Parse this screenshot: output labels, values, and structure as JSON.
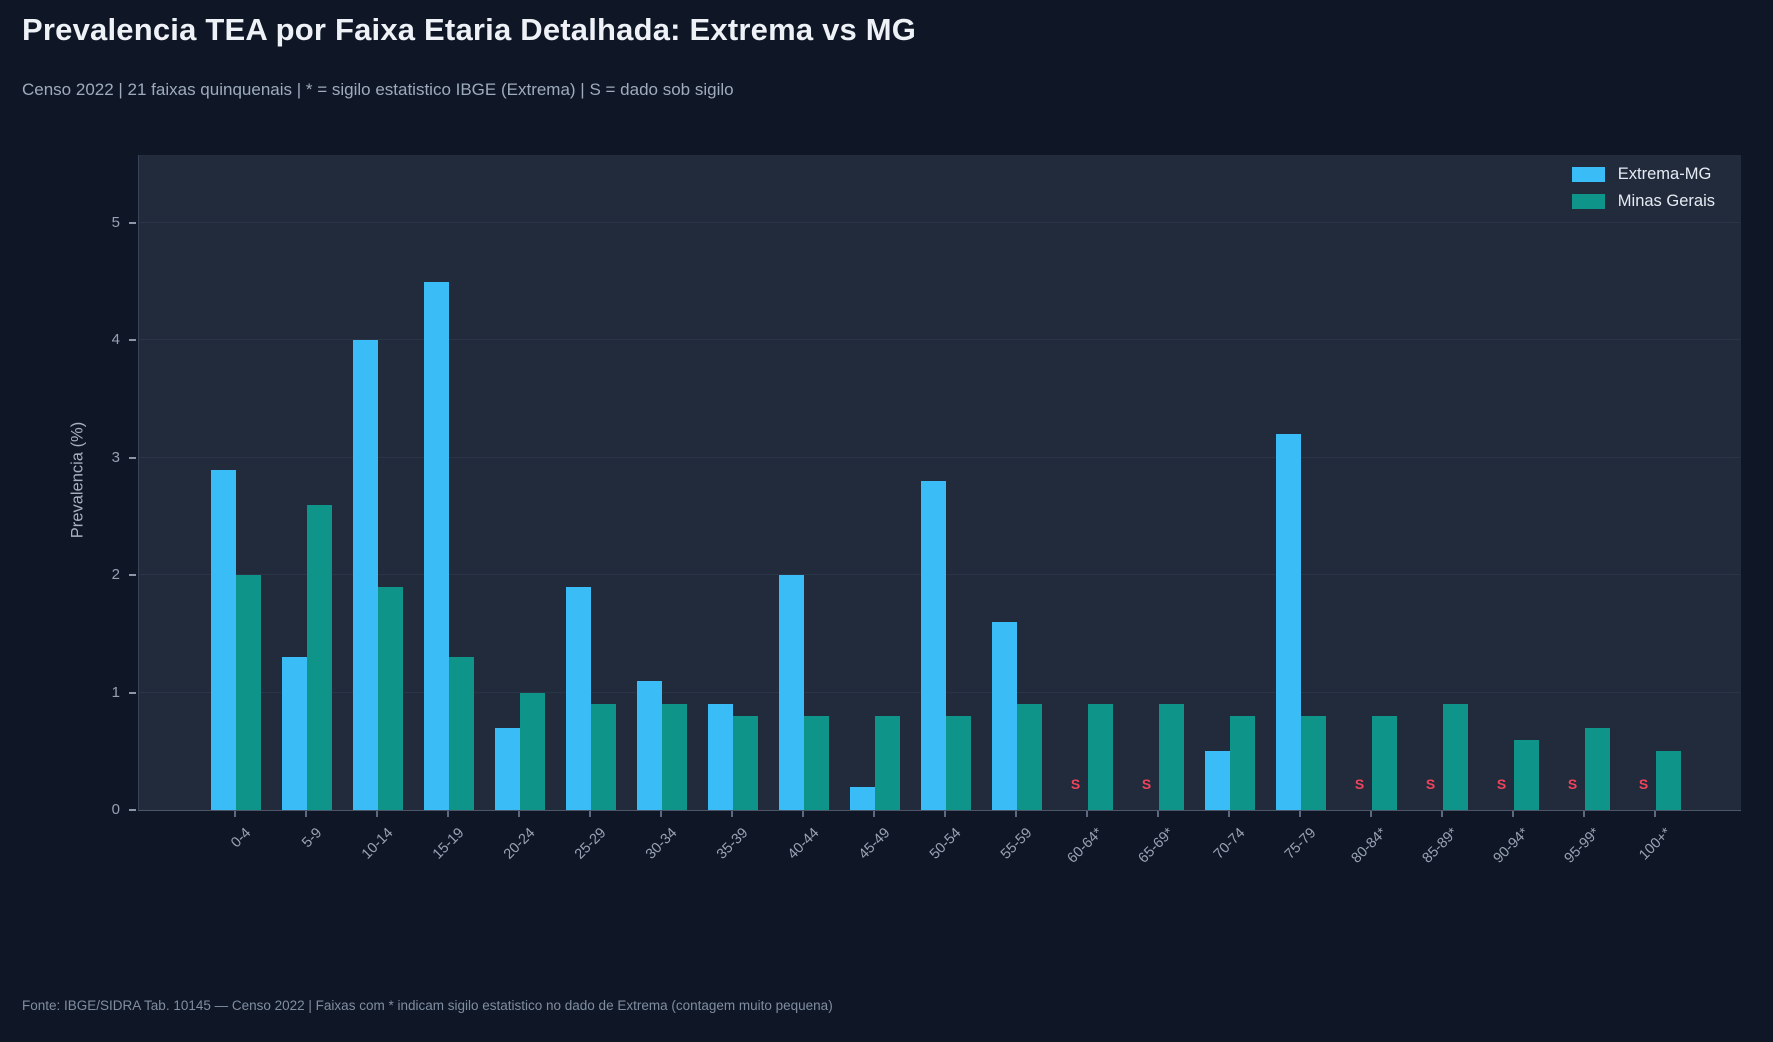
{
  "page": {
    "title": "Prevalencia TEA por Faixa Etaria Detalhada: Extrema vs MG",
    "subtitle": "Censo 2022 | 21 faixas quinquenais | * = sigilo estatistico IBGE (Extrema) | S = dado sob sigilo",
    "footer": "Fonte: IBGE/SIDRA Tab. 10145 — Censo 2022 | Faixas com * indicam sigilo estatistico no dado de Extrema (contagem muito pequena)"
  },
  "colors": {
    "extrema": "#3abdf7",
    "minas_gerais": "#0f9489",
    "sigilo": "#f0435a",
    "plot_background": "#212b3c",
    "page_background": "#0f1726"
  },
  "chart_data": {
    "type": "bar",
    "title": "Prevalencia TEA por Faixa Etaria Detalhada: Extrema vs MG",
    "ylabel": "Prevalencia (%)",
    "yticks": [
      0,
      1,
      2,
      3,
      4,
      5
    ],
    "ylim": [
      0,
      5.58
    ],
    "grid": true,
    "legend_position": "top-right",
    "sigilo_label": "S",
    "categories": [
      "0-4",
      "5-9",
      "10-14",
      "15-19",
      "20-24",
      "25-29",
      "30-34",
      "35-39",
      "40-44",
      "45-49",
      "50-54",
      "55-59",
      "60-64*",
      "65-69*",
      "70-74",
      "75-79",
      "80-84*",
      "85-89*",
      "90-94*",
      "95-99*",
      "100+*"
    ],
    "series": [
      {
        "name": "Extrema-MG",
        "color": "#3abdf7",
        "values": [
          2.9,
          1.3,
          4.0,
          4.5,
          0.7,
          1.9,
          1.1,
          0.9,
          2.0,
          0.2,
          2.8,
          1.6,
          "S",
          "S",
          0.5,
          3.2,
          "S",
          "S",
          "S",
          "S",
          "S"
        ]
      },
      {
        "name": "Minas Gerais",
        "color": "#0f9489",
        "values": [
          2.0,
          2.6,
          1.9,
          1.3,
          1.0,
          0.9,
          0.9,
          0.8,
          0.8,
          0.8,
          0.8,
          0.9,
          0.9,
          0.9,
          0.8,
          0.8,
          0.8,
          0.9,
          0.6,
          0.7,
          0.5
        ]
      }
    ]
  }
}
